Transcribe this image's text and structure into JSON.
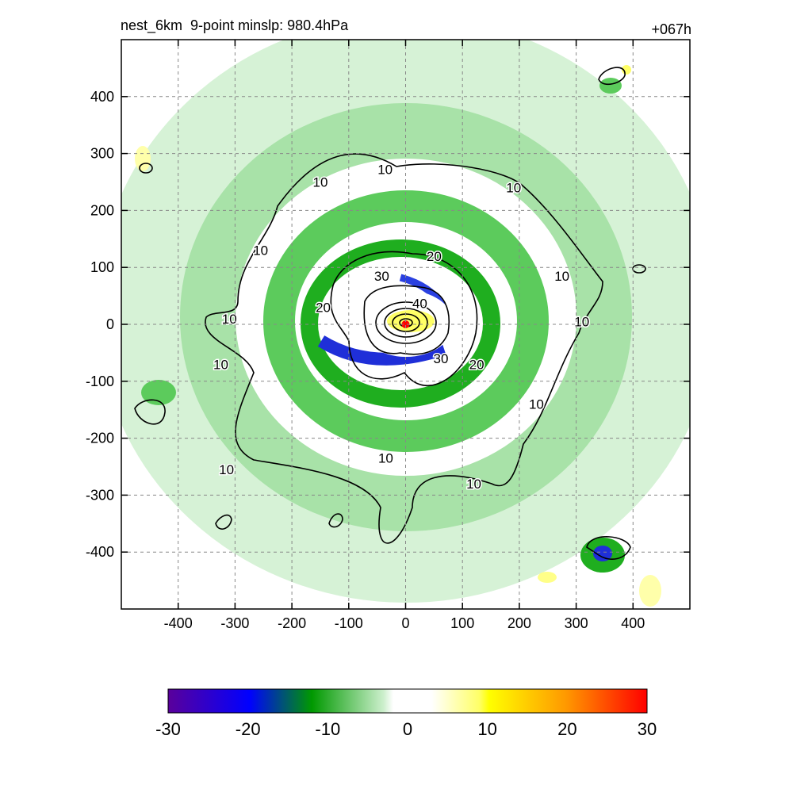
{
  "chart_data": {
    "type": "heatmap",
    "title_left": "nest_6km  9-point minslp: 980.4hPa",
    "title_right": "+067h",
    "x_ticks": [
      -400,
      -300,
      -200,
      -100,
      0,
      100,
      200,
      300,
      400
    ],
    "y_ticks": [
      400,
      300,
      200,
      100,
      0,
      -100,
      -200,
      -300,
      -400
    ],
    "xlim": [
      -500,
      500
    ],
    "ylim": [
      -500,
      500
    ],
    "grid": true,
    "colorbar": {
      "ticks": [
        -30,
        -20,
        -10,
        0,
        10,
        20,
        30
      ],
      "range": [
        -30,
        30
      ],
      "colors": [
        "#5a009b",
        "#0000ff",
        "#009900",
        "#ffffff",
        "#ffff00",
        "#ff9900",
        "#ff0000"
      ]
    },
    "center_marker": {
      "x": 0,
      "y": 0,
      "color": "#ff0000"
    },
    "contour_labels": [
      {
        "text": "10",
        "x": -150,
        "y": 250
      },
      {
        "text": "10",
        "x": -36,
        "y": 272
      },
      {
        "text": "10",
        "x": 190,
        "y": 240
      },
      {
        "text": "10",
        "x": -255,
        "y": 130
      },
      {
        "text": "10",
        "x": 275,
        "y": 85
      },
      {
        "text": "10",
        "x": -310,
        "y": 10
      },
      {
        "text": "10",
        "x": 310,
        "y": 5
      },
      {
        "text": "10",
        "x": -325,
        "y": -70
      },
      {
        "text": "10",
        "x": 230,
        "y": -140
      },
      {
        "text": "10",
        "x": -315,
        "y": -255
      },
      {
        "text": "10",
        "x": -35,
        "y": -235
      },
      {
        "text": "10",
        "x": 120,
        "y": -280
      },
      {
        "text": "20",
        "x": 50,
        "y": 120
      },
      {
        "text": "20",
        "x": -145,
        "y": 30
      },
      {
        "text": "20",
        "x": 125,
        "y": -70
      },
      {
        "text": "30",
        "x": -42,
        "y": 85
      },
      {
        "text": "30",
        "x": 62,
        "y": -60
      },
      {
        "text": "40",
        "x": 25,
        "y": 37
      }
    ]
  }
}
